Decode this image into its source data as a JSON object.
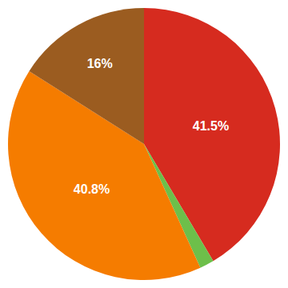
{
  "chart_data": {
    "type": "pie",
    "values": [
      41.5,
      1.7,
      40.8,
      16.0
    ],
    "value_labels": [
      "41.5%",
      null,
      "40.8%",
      "16%"
    ],
    "colors": [
      "#d62b1f",
      "#6dbf4a",
      "#f57c00",
      "#9b5c20"
    ],
    "data_labels": true
  }
}
